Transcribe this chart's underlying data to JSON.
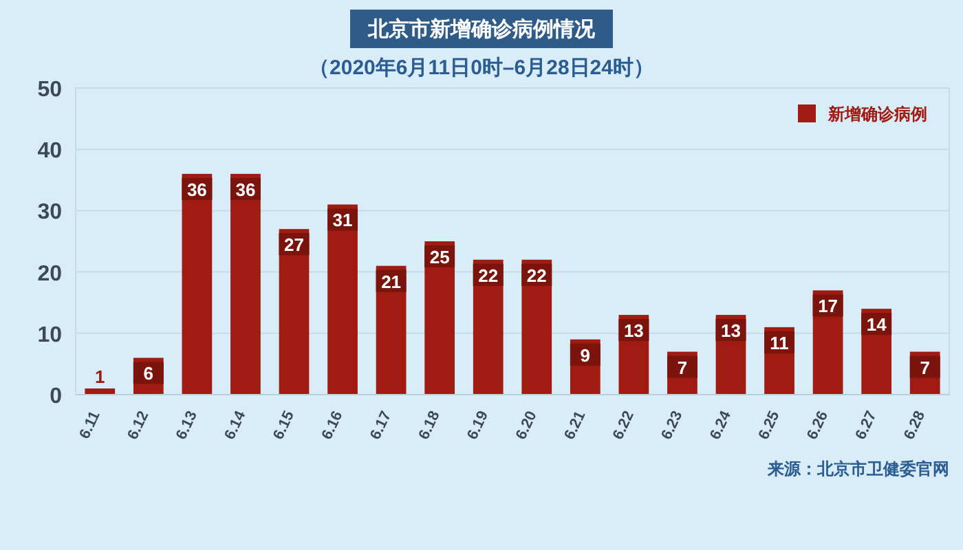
{
  "chart_data": {
    "type": "bar",
    "title": "北京市新增确诊病例情况",
    "subtitle": "（2020年6月11日0时–6月28日24时）",
    "categories": [
      "6.11",
      "6.12",
      "6.13",
      "6.14",
      "6.15",
      "6.16",
      "6.17",
      "6.18",
      "6.19",
      "6.20",
      "6.21",
      "6.22",
      "6.23",
      "6.24",
      "6.25",
      "6.26",
      "6.27",
      "6.28"
    ],
    "series": [
      {
        "name": "新增确诊病例",
        "color": "#a01c12",
        "values": [
          1,
          6,
          36,
          36,
          27,
          31,
          21,
          25,
          22,
          22,
          9,
          13,
          7,
          13,
          11,
          17,
          14,
          7
        ]
      }
    ],
    "ylim": [
      0,
      50
    ],
    "yticks": [
      0,
      10,
      20,
      30,
      40,
      50
    ],
    "grid": "y",
    "legend": "top right",
    "data_labels": true,
    "annotations": [
      "来源：北京市卫健委官网"
    ]
  }
}
